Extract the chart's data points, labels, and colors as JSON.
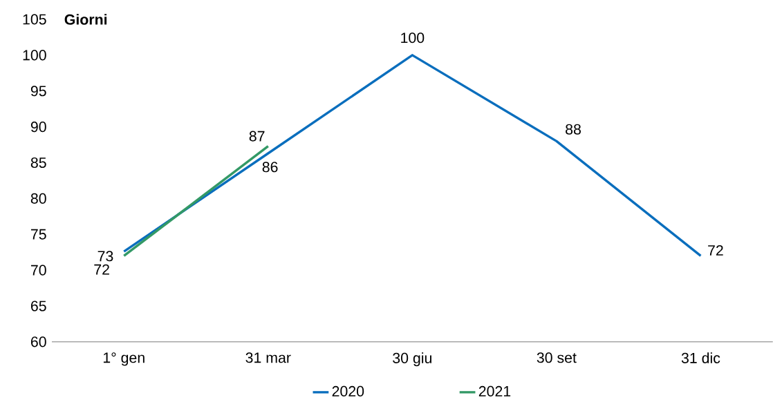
{
  "chart_data": {
    "type": "line",
    "ylabel": "Giorni",
    "categories": [
      "1° gen",
      "31 mar",
      "30 giu",
      "30 set",
      "31 dic"
    ],
    "series": [
      {
        "name": "2020",
        "color": "#0a6ebd",
        "values": [
          72.6,
          86.3,
          100,
          88,
          72
        ],
        "value_labels": [
          "73",
          "86",
          "100",
          "88",
          "72"
        ]
      },
      {
        "name": "2021",
        "color": "#339966",
        "values": [
          72,
          87.3,
          null,
          null,
          null
        ],
        "value_labels": [
          "72",
          "87",
          null,
          null,
          null
        ]
      }
    ],
    "ylim": [
      60,
      105
    ],
    "yticks": [
      60,
      65,
      70,
      75,
      80,
      85,
      90,
      95,
      100,
      105
    ],
    "grid": false,
    "legend": "bottom",
    "marker": "none",
    "line_style": "solid"
  }
}
